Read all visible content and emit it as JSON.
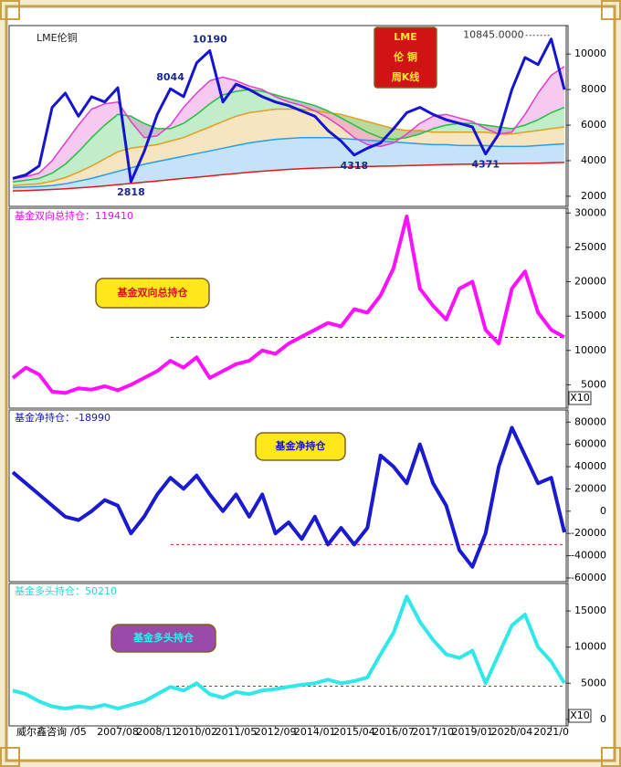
{
  "chart_data": [
    {
      "type": "line",
      "title": "LME伦铜",
      "badge": [
        "LME",
        "伦 铜",
        "周K线"
      ],
      "ylim": [
        1430,
        11600
      ],
      "yticks": [
        2000,
        4000,
        6000,
        8000,
        10000
      ],
      "annotations": [
        10190,
        8044,
        2818,
        4318,
        4371,
        {
          "value": 10845,
          "label": "10845.0000"
        }
      ],
      "series": [
        {
          "color": "#1414d2",
          "values": [
            3000,
            3200,
            3700,
            7000,
            7800,
            6500,
            7600,
            7300,
            8100,
            2818,
            4500,
            6600,
            8044,
            7600,
            9500,
            10190,
            7300,
            8300,
            8000,
            7600,
            7300,
            7100,
            6800,
            6500,
            5700,
            5100,
            4318,
            4700,
            5000,
            5800,
            6700,
            7000,
            6600,
            6300,
            6100,
            5900,
            4371,
            5500,
            8000,
            9800,
            9400,
            10845,
            8000
          ]
        },
        {
          "color": "#e040c8",
          "values": [
            3000,
            3100,
            3300,
            4000,
            5000,
            6000,
            6900,
            7200,
            7300,
            6200,
            5300,
            5400,
            6000,
            7000,
            7800,
            8500,
            8700,
            8500,
            8200,
            8000,
            7600,
            7300,
            7100,
            6800,
            6400,
            5900,
            5300,
            4900,
            4800,
            5000,
            5500,
            6100,
            6500,
            6600,
            6400,
            6200,
            5800,
            5500,
            5600,
            6600,
            7800,
            8800,
            9300
          ]
        },
        {
          "color": "#22c040",
          "values": [
            2800,
            2900,
            3000,
            3300,
            3800,
            4500,
            5300,
            6000,
            6600,
            6500,
            6100,
            5800,
            5800,
            6100,
            6600,
            7200,
            7700,
            7900,
            8000,
            7900,
            7700,
            7500,
            7300,
            7100,
            6800,
            6400,
            6000,
            5600,
            5300,
            5200,
            5300,
            5500,
            5800,
            6000,
            6100,
            6100,
            6000,
            5900,
            5800,
            6000,
            6300,
            6700,
            7000
          ]
        },
        {
          "color": "#e0a020",
          "values": [
            2600,
            2650,
            2700,
            2850,
            3050,
            3350,
            3700,
            4100,
            4500,
            4700,
            4800,
            4900,
            5100,
            5300,
            5600,
            5900,
            6200,
            6500,
            6700,
            6800,
            6900,
            6900,
            6900,
            6800,
            6700,
            6600,
            6400,
            6200,
            6000,
            5800,
            5700,
            5700,
            5600,
            5600,
            5600,
            5600,
            5600,
            5500,
            5500,
            5600,
            5700,
            5800,
            5900
          ]
        },
        {
          "color": "#2a9ce8",
          "values": [
            2500,
            2520,
            2550,
            2600,
            2700,
            2850,
            3000,
            3200,
            3400,
            3600,
            3800,
            3950,
            4100,
            4250,
            4400,
            4550,
            4700,
            4850,
            5000,
            5100,
            5200,
            5250,
            5300,
            5300,
            5300,
            5250,
            5200,
            5150,
            5100,
            5050,
            5000,
            4950,
            4900,
            4900,
            4850,
            4850,
            4850,
            4800,
            4800,
            4800,
            4850,
            4900,
            4950
          ]
        },
        {
          "color": "#e01818",
          "values": [
            2300,
            2320,
            2350,
            2380,
            2420,
            2470,
            2520,
            2580,
            2650,
            2720,
            2790,
            2860,
            2930,
            3000,
            3070,
            3140,
            3210,
            3280,
            3350,
            3410,
            3460,
            3510,
            3550,
            3580,
            3610,
            3630,
            3650,
            3670,
            3690,
            3700,
            3720,
            3740,
            3760,
            3780,
            3800,
            3810,
            3820,
            3830,
            3840,
            3850,
            3860,
            3880,
            3900
          ]
        }
      ]
    },
    {
      "type": "line",
      "title": "基金双向总持仓：119410",
      "badge": [
        "基金双向总持仓"
      ],
      "scale_note": "X10",
      "ylim": [
        1600,
        30700
      ],
      "yticks": [
        5000,
        10000,
        15000,
        20000,
        25000,
        30000
      ],
      "color": "#ff10ff",
      "hline": {
        "value": 11900,
        "color": "#2020c0"
      },
      "values": [
        6000,
        7500,
        6500,
        4000,
        3800,
        4500,
        4300,
        4800,
        4200,
        5000,
        6000,
        7000,
        8500,
        7500,
        9000,
        6000,
        7000,
        8000,
        8500,
        10000,
        9500,
        11000,
        12000,
        13000,
        14000,
        13500,
        16000,
        15500,
        18000,
        22000,
        29500,
        19000,
        16500,
        14500,
        19000,
        20000,
        13000,
        11000,
        19000,
        21500,
        15500,
        13000,
        11941
      ]
    },
    {
      "type": "line",
      "title": "基金净持仓：-18990",
      "badge": [
        "基金净持仓"
      ],
      "ylim": [
        -63300,
        90900
      ],
      "yticks": [
        -60000,
        -40000,
        -20000,
        0,
        20000,
        40000,
        60000,
        80000
      ],
      "color": "#1a1ad0",
      "hline": {
        "value": -30000,
        "color": "#d02020"
      },
      "values": [
        35000,
        25000,
        15000,
        5000,
        -5000,
        -8000,
        0,
        10000,
        5000,
        -20000,
        -5000,
        15000,
        30000,
        20000,
        32000,
        15000,
        0,
        15000,
        -5000,
        15000,
        -20000,
        -10000,
        -25000,
        -5000,
        -30000,
        -15000,
        -30000,
        -15000,
        50000,
        40000,
        25000,
        60000,
        25000,
        5000,
        -35000,
        -50000,
        -20000,
        40000,
        75000,
        50000,
        25000,
        30000,
        -18990
      ]
    },
    {
      "type": "line",
      "title": "基金多头持仓：50210",
      "badge": [
        "基金多头持仓"
      ],
      "scale_note": "X10",
      "ylim": [
        -900,
        18800
      ],
      "yticks": [
        0,
        5000,
        10000,
        15000
      ],
      "color": "#30e8e8",
      "hline": {
        "value": 4600,
        "color": "#d02020"
      },
      "values": [
        4000,
        3500,
        2500,
        1800,
        1500,
        1800,
        1600,
        2000,
        1500,
        2000,
        2500,
        3500,
        4500,
        4000,
        5000,
        3500,
        3000,
        3800,
        3500,
        4000,
        4200,
        4500,
        4800,
        5000,
        5500,
        5000,
        5300,
        5800,
        9000,
        12000,
        17000,
        13500,
        11000,
        9000,
        8500,
        9500,
        5000,
        9000,
        13000,
        14500,
        10000,
        8000,
        5021
      ],
      "categories": [
        null,
        null,
        null,
        null,
        null,
        "/05",
        null,
        null,
        "2007/08",
        null,
        null,
        "2008/11",
        null,
        null,
        "2010/02",
        null,
        null,
        "2011/05",
        null,
        null,
        "2012/09",
        null,
        null,
        "2014/01",
        null,
        null,
        "2015/04",
        null,
        null,
        "2016/07",
        null,
        null,
        "2017/10",
        null,
        null,
        "2019/01",
        null,
        null,
        "2020/04",
        null,
        null,
        "2021/0",
        null
      ]
    }
  ],
  "footer": "威尔鑫咨询"
}
